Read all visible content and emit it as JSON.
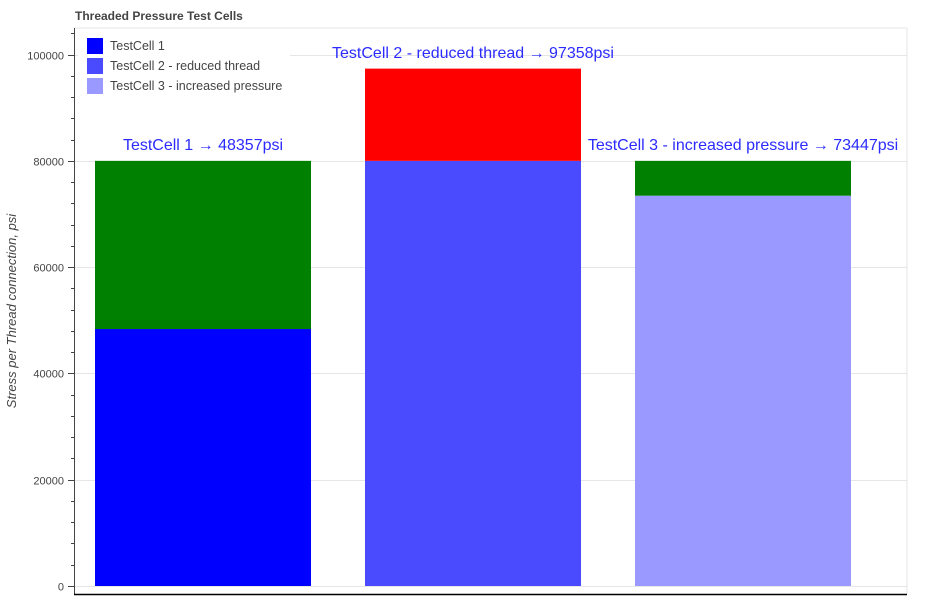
{
  "chart_data": {
    "type": "bar",
    "title": "Threaded Pressure Test Cells",
    "xlabel": "",
    "ylabel": "Stress per Thread connection, psi",
    "ylim": [
      0,
      105000
    ],
    "yticks": [
      0,
      20000,
      40000,
      60000,
      80000,
      100000
    ],
    "grid": true,
    "legend_position": "top-left",
    "threshold": 80000,
    "categories": [
      "TestCell 1",
      "TestCell 2 - reduced thread",
      "TestCell 3 - increased pressure"
    ],
    "values": [
      48357,
      97358,
      73447
    ],
    "series": [
      {
        "name": "TestCell 1",
        "color": "#0000ff"
      },
      {
        "name": "TestCell 2 - reduced thread",
        "color": "#4a4aff"
      },
      {
        "name": "TestCell 3 - increased pressure",
        "color": "#9999ff"
      }
    ],
    "margin_colors": {
      "below_limit": "#008000",
      "above_limit": "#ff0000"
    },
    "annotations": [
      "TestCell 1 → 48357psi",
      "TestCell 2 - reduced thread → 97358psi",
      "TestCell 3 - increased pressure → 73447psi"
    ]
  }
}
